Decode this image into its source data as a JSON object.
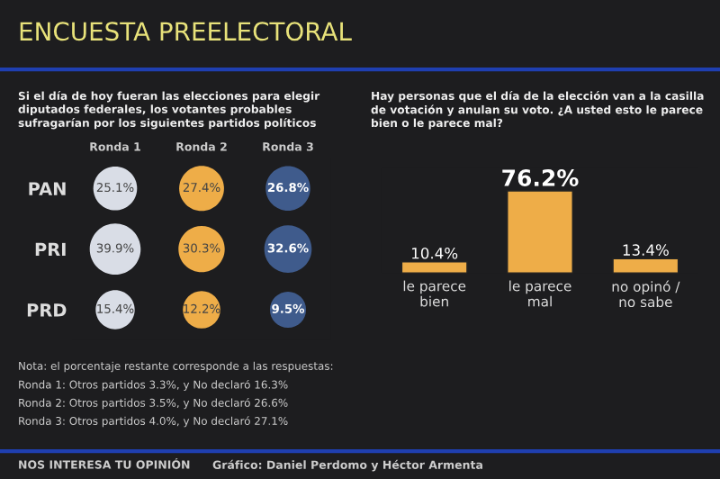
{
  "chart_data": [
    {
      "type": "heatmap",
      "title": "ENCUESTA PREELECTORAL",
      "subtitle": "Si el día de hoy fueran las elecciones para elegir\ndiputados federales, los votantes probables\nsufragarían por los siguientes partidos políticos",
      "categories": [
        "Ronda 1",
        "Ronda 2",
        "Ronda 3"
      ],
      "y_categories": [
        "PAN",
        "PRI",
        "PRD"
      ],
      "cells": [
        [
          25.1,
          27.4,
          26.8
        ],
        [
          39.9,
          30.3,
          32.6
        ],
        [
          15.4,
          12.2,
          9.5
        ]
      ],
      "cell_labels": [
        [
          "25.1%",
          "27.4%",
          "26.8%"
        ],
        [
          "39.9%",
          "30.3%",
          "32.6%"
        ],
        [
          "15.4%",
          "12.2%",
          "9.5%"
        ]
      ],
      "colors": [
        "#d9dde6",
        "#eead48",
        "#3f5b8c"
      ],
      "annotations": [
        "Nota: el porcentaje restante corresponde a las respuestas:",
        "Ronda 1: Otros partidos 3.3%, y No declaró 16.3%",
        "Ronda 2: Otros partidos 3.5%, y No declaró 26.6%",
        "Ronda 3: Otros partidos 4.0%, y No declaró 27.1%",
        "NOS INTERESA TU OPINIÓN",
        "Gráfico: Daniel Perdomo y Héctor Armenta"
      ]
    },
    {
      "type": "bar",
      "subtitle": "Hay personas que el día de la elección van a la casilla\nde votación y anulan su voto. ¿A usted esto le parece\nbien o le parece mal?",
      "categories": [
        "le parece\nbien",
        "le parece\nmal",
        "no opinó /\nno sabe"
      ],
      "values": [
        10.4,
        76.2,
        13.4
      ],
      "value_labels": [
        "10.4%",
        "76.2%",
        "13.4%"
      ],
      "color": "#eead48"
    }
  ]
}
